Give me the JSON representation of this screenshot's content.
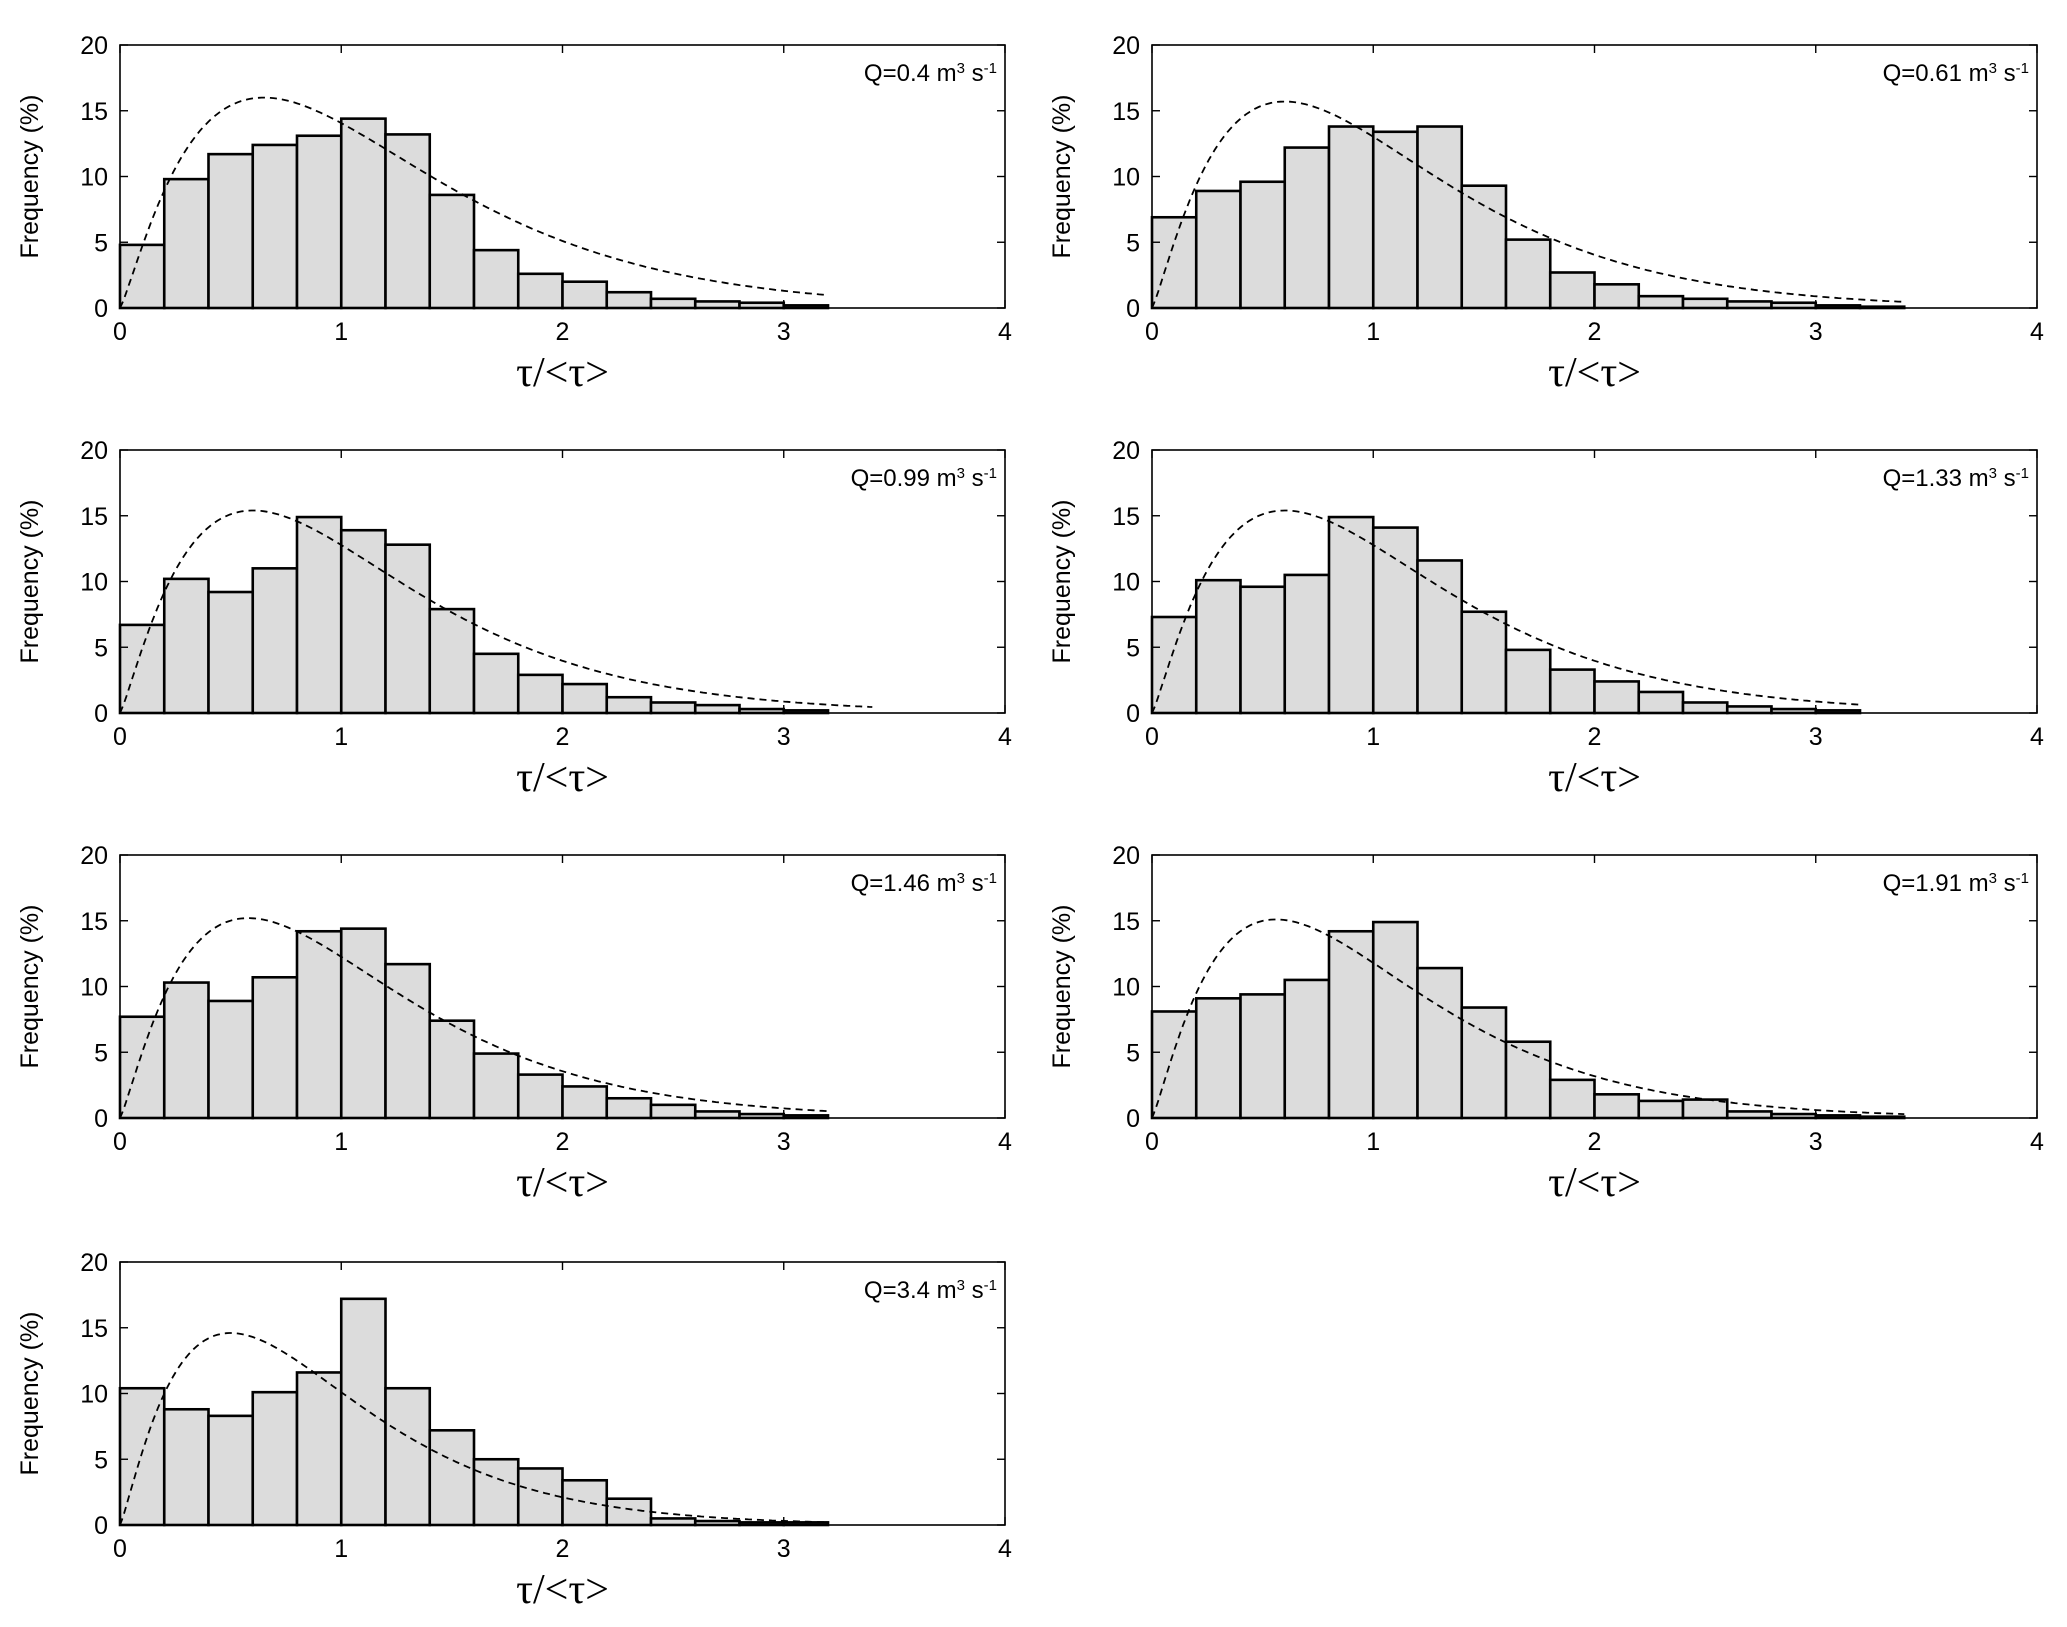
{
  "chart_data": [
    {
      "type": "bar",
      "title": "",
      "annotation": {
        "prefix": "Q=0.4 m",
        "sup1": "3",
        "mid": " s",
        "sup2": "-1"
      },
      "xlabel": "τ/<τ>",
      "ylabel": "Frequency (%)",
      "xlim": [
        0,
        4
      ],
      "ylim": [
        0,
        20
      ],
      "xticks": [
        "0",
        "1",
        "2",
        "3",
        "4"
      ],
      "yticks": [
        "0",
        "5",
        "10",
        "15",
        "20"
      ],
      "bin_width": 0.2,
      "bin_starts": [
        0,
        0.2,
        0.4,
        0.6,
        0.8,
        1.0,
        1.2,
        1.4,
        1.6,
        1.8,
        2.0,
        2.2,
        2.4,
        2.6,
        2.8,
        3.0
      ],
      "values": [
        4.8,
        9.8,
        11.7,
        12.4,
        13.1,
        14.4,
        13.2,
        8.6,
        4.4,
        2.6,
        2.0,
        1.2,
        0.7,
        0.5,
        0.4,
        0.2
      ],
      "fit_curve": {
        "type": "gamma-like",
        "peak_x": 0.65,
        "peak_y": 16.0,
        "x_end": 3.2
      }
    },
    {
      "type": "bar",
      "title": "",
      "annotation": {
        "prefix": "Q=0.61 m",
        "sup1": "3",
        "mid": " s",
        "sup2": "-1"
      },
      "xlabel": "τ/<τ>",
      "ylabel": "Frequency (%)",
      "xlim": [
        0,
        4
      ],
      "ylim": [
        0,
        20
      ],
      "xticks": [
        "0",
        "1",
        "2",
        "3",
        "4"
      ],
      "yticks": [
        "0",
        "5",
        "10",
        "15",
        "20"
      ],
      "bin_width": 0.2,
      "bin_starts": [
        0,
        0.2,
        0.4,
        0.6,
        0.8,
        1.0,
        1.2,
        1.4,
        1.6,
        1.8,
        2.0,
        2.2,
        2.4,
        2.6,
        2.8,
        3.0,
        3.2
      ],
      "values": [
        6.9,
        8.9,
        9.6,
        12.2,
        13.8,
        13.4,
        13.8,
        9.3,
        5.2,
        2.7,
        1.8,
        0.9,
        0.7,
        0.5,
        0.4,
        0.2,
        0.1
      ],
      "fit_curve": {
        "type": "gamma-like",
        "peak_x": 0.6,
        "peak_y": 15.7,
        "x_end": 3.4
      }
    },
    {
      "type": "bar",
      "title": "",
      "annotation": {
        "prefix": "Q=0.99 m",
        "sup1": "3",
        "mid": " s",
        "sup2": "-1"
      },
      "xlabel": "τ/<τ>",
      "ylabel": "Frequency (%)",
      "xlim": [
        0,
        4
      ],
      "ylim": [
        0,
        20
      ],
      "xticks": [
        "0",
        "1",
        "2",
        "3",
        "4"
      ],
      "yticks": [
        "0",
        "5",
        "10",
        "15",
        "20"
      ],
      "bin_width": 0.2,
      "bin_starts": [
        0,
        0.2,
        0.4,
        0.6,
        0.8,
        1.0,
        1.2,
        1.4,
        1.6,
        1.8,
        2.0,
        2.2,
        2.4,
        2.6,
        2.8,
        3.0
      ],
      "values": [
        6.7,
        10.2,
        9.2,
        11.0,
        14.9,
        13.9,
        12.8,
        7.9,
        4.5,
        2.9,
        2.2,
        1.2,
        0.8,
        0.6,
        0.3,
        0.2
      ],
      "fit_curve": {
        "type": "gamma-like",
        "peak_x": 0.6,
        "peak_y": 15.4,
        "x_end": 3.4
      }
    },
    {
      "type": "bar",
      "title": "",
      "annotation": {
        "prefix": "Q=1.33 m",
        "sup1": "3",
        "mid": " s",
        "sup2": "-1"
      },
      "xlabel": "τ/<τ>",
      "ylabel": "Frequency (%)",
      "xlim": [
        0,
        4
      ],
      "ylim": [
        0,
        20
      ],
      "xticks": [
        "0",
        "1",
        "2",
        "3",
        "4"
      ],
      "yticks": [
        "0",
        "5",
        "10",
        "15",
        "20"
      ],
      "bin_width": 0.2,
      "bin_starts": [
        0,
        0.2,
        0.4,
        0.6,
        0.8,
        1.0,
        1.2,
        1.4,
        1.6,
        1.8,
        2.0,
        2.2,
        2.4,
        2.6,
        2.8,
        3.0
      ],
      "values": [
        7.3,
        10.1,
        9.6,
        10.5,
        14.9,
        14.1,
        11.6,
        7.7,
        4.8,
        3.3,
        2.4,
        1.6,
        0.8,
        0.5,
        0.3,
        0.2
      ],
      "fit_curve": {
        "type": "gamma-like",
        "peak_x": 0.6,
        "peak_y": 15.4,
        "x_end": 3.2
      }
    },
    {
      "type": "bar",
      "title": "",
      "annotation": {
        "prefix": "Q=1.46 m",
        "sup1": "3",
        "mid": " s",
        "sup2": "-1"
      },
      "xlabel": "τ/<τ>",
      "ylabel": "Frequency (%)",
      "xlim": [
        0,
        4
      ],
      "ylim": [
        0,
        20
      ],
      "xticks": [
        "0",
        "1",
        "2",
        "3",
        "4"
      ],
      "yticks": [
        "0",
        "5",
        "10",
        "15",
        "20"
      ],
      "bin_width": 0.2,
      "bin_starts": [
        0,
        0.2,
        0.4,
        0.6,
        0.8,
        1.0,
        1.2,
        1.4,
        1.6,
        1.8,
        2.0,
        2.2,
        2.4,
        2.6,
        2.8,
        3.0
      ],
      "values": [
        7.7,
        10.3,
        8.9,
        10.7,
        14.2,
        14.4,
        11.7,
        7.4,
        4.9,
        3.3,
        2.4,
        1.5,
        1.0,
        0.5,
        0.3,
        0.2
      ],
      "fit_curve": {
        "type": "gamma-like",
        "peak_x": 0.58,
        "peak_y": 15.2,
        "x_end": 3.2
      }
    },
    {
      "type": "bar",
      "title": "",
      "annotation": {
        "prefix": "Q=1.91 m",
        "sup1": "3",
        "mid": " s",
        "sup2": "-1"
      },
      "xlabel": "τ/<τ>",
      "ylabel": "Frequency (%)",
      "xlim": [
        0,
        4
      ],
      "ylim": [
        0,
        20
      ],
      "xticks": [
        "0",
        "1",
        "2",
        "3",
        "4"
      ],
      "yticks": [
        "0",
        "5",
        "10",
        "15",
        "20"
      ],
      "bin_width": 0.2,
      "bin_starts": [
        0,
        0.2,
        0.4,
        0.6,
        0.8,
        1.0,
        1.2,
        1.4,
        1.6,
        1.8,
        2.0,
        2.2,
        2.4,
        2.6,
        2.8,
        3.0,
        3.2
      ],
      "values": [
        8.1,
        9.1,
        9.4,
        10.5,
        14.2,
        14.9,
        11.4,
        8.4,
        5.8,
        2.9,
        1.8,
        1.3,
        1.4,
        0.5,
        0.3,
        0.2,
        0.1
      ],
      "fit_curve": {
        "type": "gamma-like",
        "peak_x": 0.56,
        "peak_y": 15.1,
        "x_end": 3.4
      }
    },
    {
      "type": "bar",
      "title": "",
      "annotation": {
        "prefix": "Q=3.4 m",
        "sup1": "3",
        "mid": " s",
        "sup2": "-1"
      },
      "xlabel": "τ/<τ>",
      "ylabel": "Frequency (%)",
      "xlim": [
        0,
        4
      ],
      "ylim": [
        0,
        20
      ],
      "xticks": [
        "0",
        "1",
        "2",
        "3",
        "4"
      ],
      "yticks": [
        "0",
        "5",
        "10",
        "15",
        "20"
      ],
      "bin_width": 0.2,
      "bin_starts": [
        0,
        0.2,
        0.4,
        0.6,
        0.8,
        1.0,
        1.2,
        1.4,
        1.6,
        1.8,
        2.0,
        2.2,
        2.4,
        2.6,
        2.8,
        3.0
      ],
      "values": [
        10.4,
        8.8,
        8.3,
        10.1,
        11.6,
        17.2,
        10.4,
        7.2,
        5.0,
        4.3,
        3.4,
        2.0,
        0.5,
        0.3,
        0.2,
        0.2
      ],
      "fit_curve": {
        "type": "gamma-like",
        "peak_x": 0.5,
        "peak_y": 14.6,
        "x_end": 3.2
      }
    }
  ]
}
